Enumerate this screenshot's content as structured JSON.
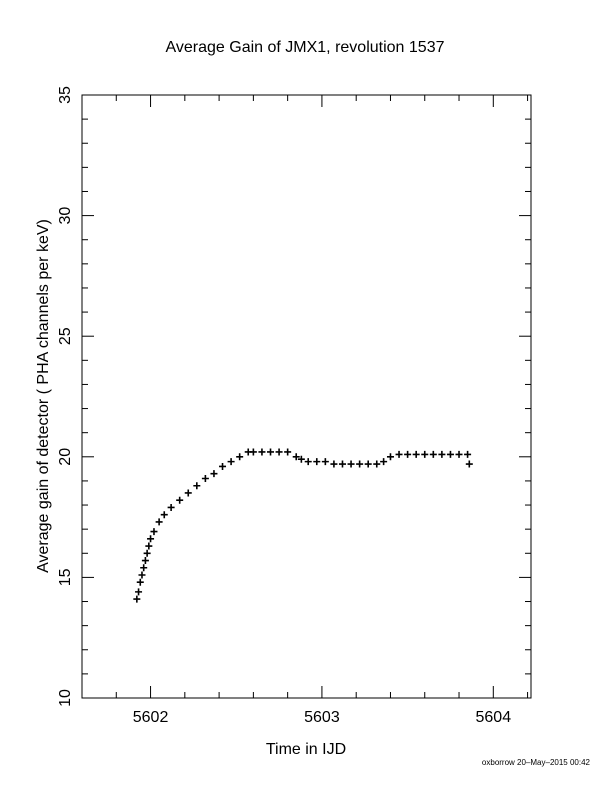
{
  "chart_data": {
    "type": "scatter",
    "title": "Average Gain of JMX1, revolution 1537",
    "xlabel": "Time in IJD",
    "ylabel": "Average gain of detector ( PHA channels per keV)",
    "xlim": [
      5601.6,
      5604.22
    ],
    "ylim": [
      10,
      35
    ],
    "xticks": [
      5602,
      5603,
      5604
    ],
    "yticks": [
      10,
      15,
      20,
      25,
      30,
      35
    ],
    "grid": false,
    "marker": "+",
    "series": [
      {
        "x": [
          5601.92,
          5601.93,
          5601.94,
          5601.95,
          5601.96,
          5601.97,
          5601.98,
          5601.99,
          5602.0,
          5602.02,
          5602.05,
          5602.08,
          5602.12,
          5602.17,
          5602.22,
          5602.27,
          5602.32,
          5602.37,
          5602.42,
          5602.47,
          5602.52,
          5602.57,
          5602.6,
          5602.65,
          5602.7,
          5602.75,
          5602.8,
          5602.85,
          5602.88,
          5602.92,
          5602.97,
          5603.02,
          5603.07,
          5603.12,
          5603.17,
          5603.22,
          5603.27,
          5603.32,
          5603.36,
          5603.4,
          5603.45,
          5603.5,
          5603.55,
          5603.6,
          5603.65,
          5603.7,
          5603.75,
          5603.8,
          5603.85,
          5603.86
        ],
        "y": [
          14.1,
          14.4,
          14.8,
          15.1,
          15.4,
          15.7,
          16.0,
          16.3,
          16.6,
          16.9,
          17.3,
          17.6,
          17.9,
          18.2,
          18.5,
          18.8,
          19.1,
          19.3,
          19.6,
          19.8,
          20.0,
          20.2,
          20.2,
          20.2,
          20.2,
          20.2,
          20.2,
          20.0,
          19.9,
          19.8,
          19.8,
          19.8,
          19.7,
          19.7,
          19.7,
          19.7,
          19.7,
          19.7,
          19.8,
          20.0,
          20.1,
          20.1,
          20.1,
          20.1,
          20.1,
          20.1,
          20.1,
          20.1,
          20.1,
          19.7
        ]
      }
    ]
  },
  "footer": "oxborrow 20–May–2015 00:42"
}
